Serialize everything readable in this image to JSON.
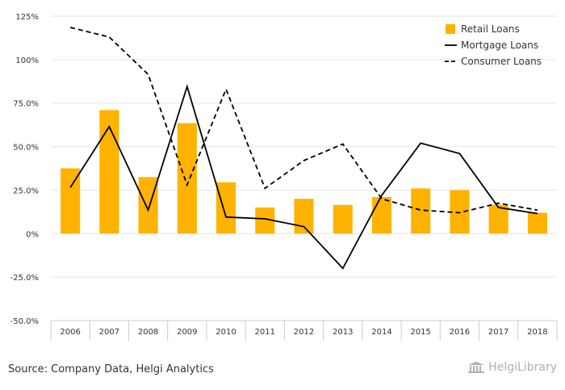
{
  "colors": {
    "retail": "#FFB300",
    "mortgage": "#000000",
    "consumer": "#000000",
    "grid": "#e6e6e6",
    "axis": "#cccccc"
  },
  "chart_data": {
    "type": "bar",
    "categories": [
      "2006",
      "2007",
      "2008",
      "2009",
      "2010",
      "2011",
      "2012",
      "2013",
      "2014",
      "2015",
      "2016",
      "2017",
      "2018"
    ],
    "series": [
      {
        "name": "Retail Loans",
        "type": "bar",
        "values": [
          37.5,
          71,
          32.5,
          63.5,
          29.5,
          15,
          20,
          16.5,
          21,
          26,
          25,
          16.5,
          12
        ]
      },
      {
        "name": "Mortgage Loans",
        "type": "line",
        "dash": "solid",
        "values": [
          26.5,
          61.5,
          13.5,
          84.5,
          9.5,
          8.5,
          4,
          -20,
          22,
          52,
          46,
          15,
          11.5
        ]
      },
      {
        "name": "Consumer Loans",
        "type": "line",
        "dash": "dashed",
        "values": [
          118.5,
          113,
          91.5,
          28,
          83,
          26,
          42,
          51.5,
          20,
          13.5,
          12,
          17.5,
          13.5
        ]
      }
    ],
    "y_ticks": [
      "125%",
      "100%",
      "75.0%",
      "50.0%",
      "25.0%",
      "0%",
      "-25.0%",
      "-50.0%"
    ],
    "ylim": [
      -50,
      125
    ],
    "y_step": 25,
    "grid": true,
    "legend_position": "top-right"
  },
  "footer": {
    "source": "Source: Company Data, Helgi Analytics",
    "logo_text": "HelgiLibrary"
  }
}
